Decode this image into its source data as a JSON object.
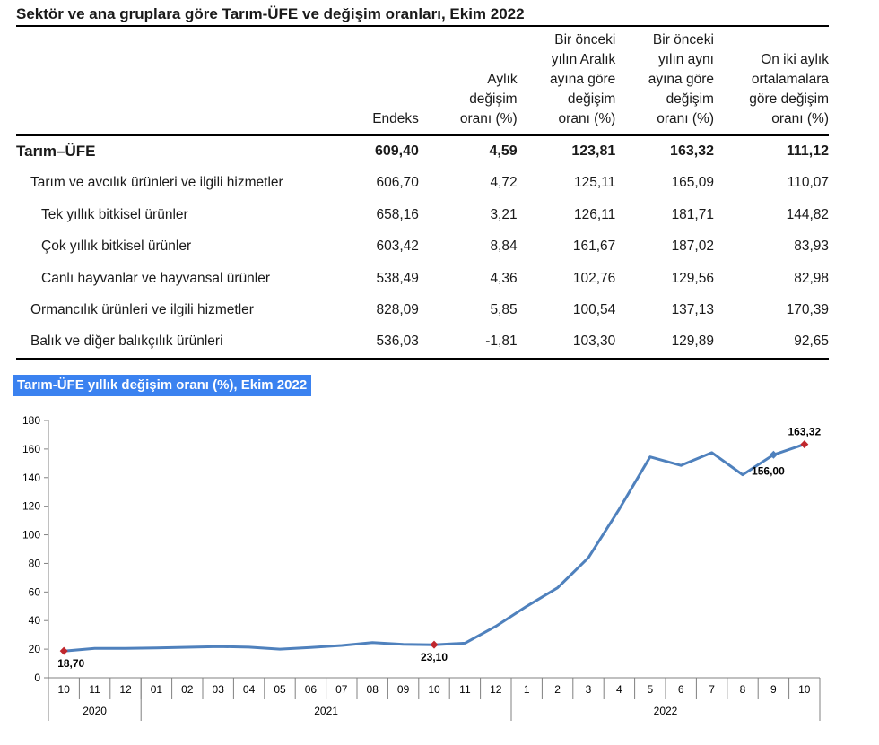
{
  "table": {
    "title": "Sektör ve ana gruplara göre Tarım-ÜFE ve değişim oranları, Ekim 2022",
    "headers": [
      "",
      "Endeks",
      "Aylık\ndeğişim\noranı (%)",
      "Bir önceki\nyılın Aralık\nayına göre\ndeğişim\noranı (%)",
      "Bir önceki\nyılın aynı\nayına göre\ndeğişim\noranı (%)",
      "On iki aylık\nortalamalara\ngöre değişim\noranı (%)"
    ],
    "rows": [
      {
        "label": "Tarım–ÜFE",
        "values": [
          "609,40",
          "4,59",
          "123,81",
          "163,32",
          "111,12"
        ]
      },
      {
        "label": "Tarım ve avcılık ürünleri ve ilgili hizmetler",
        "values": [
          "606,70",
          "4,72",
          "125,11",
          "165,09",
          "110,07"
        ]
      },
      {
        "label": "Tek yıllık bitkisel ürünler",
        "values": [
          "658,16",
          "3,21",
          "126,11",
          "181,71",
          "144,82"
        ]
      },
      {
        "label": "Çok yıllık bitkisel ürünler",
        "values": [
          "603,42",
          "8,84",
          "161,67",
          "187,02",
          "83,93"
        ]
      },
      {
        "label": "Canlı hayvanlar ve hayvansal ürünler",
        "values": [
          "538,49",
          "4,36",
          "102,76",
          "129,56",
          "82,98"
        ]
      },
      {
        "label": "Ormancılık ürünleri ve ilgili hizmetler",
        "values": [
          "828,09",
          "5,85",
          "100,54",
          "137,13",
          "170,39"
        ]
      },
      {
        "label": "Balık ve diğer balıkçılık ürünleri",
        "values": [
          "536,03",
          "-1,81",
          "103,30",
          "129,89",
          "92,65"
        ]
      }
    ]
  },
  "chart_data": {
    "type": "line",
    "title": "Tarım-ÜFE yıllık değişim oranı (%), Ekim 2022",
    "xlabel": "",
    "ylabel": "",
    "ylim": [
      0,
      180
    ],
    "yticks": [
      0,
      20,
      40,
      60,
      80,
      100,
      120,
      140,
      160,
      180
    ],
    "grid": false,
    "months": [
      "10",
      "11",
      "12",
      "01",
      "02",
      "03",
      "04",
      "05",
      "06",
      "07",
      "08",
      "09",
      "10",
      "11",
      "12",
      "1",
      "2",
      "3",
      "4",
      "5",
      "6",
      "7",
      "8",
      "9",
      "10"
    ],
    "year_groups": [
      {
        "label": "2020",
        "count": 3
      },
      {
        "label": "2021",
        "count": 12
      },
      {
        "label": "2022",
        "count": 10
      }
    ],
    "series": [
      {
        "values": [
          18.7,
          20.5,
          20.6,
          20.8,
          21.3,
          21.8,
          21.4,
          20.0,
          21.2,
          22.6,
          24.6,
          23.4,
          23.1,
          24.2,
          36.0,
          50.0,
          62.9,
          84.0,
          118.0,
          154.5,
          148.5,
          157.5,
          142.0,
          156.0,
          163.32
        ],
        "color": "#4f81bd"
      }
    ],
    "highlights": [
      {
        "index": 0,
        "label": "18,70",
        "color": "#c0272d"
      },
      {
        "index": 12,
        "label": "23,10",
        "color": "#c0272d"
      },
      {
        "index": 23,
        "label": "156,00",
        "color": "#4f81bd"
      },
      {
        "index": 24,
        "label": "163,32",
        "color": "#c0272d"
      }
    ]
  }
}
